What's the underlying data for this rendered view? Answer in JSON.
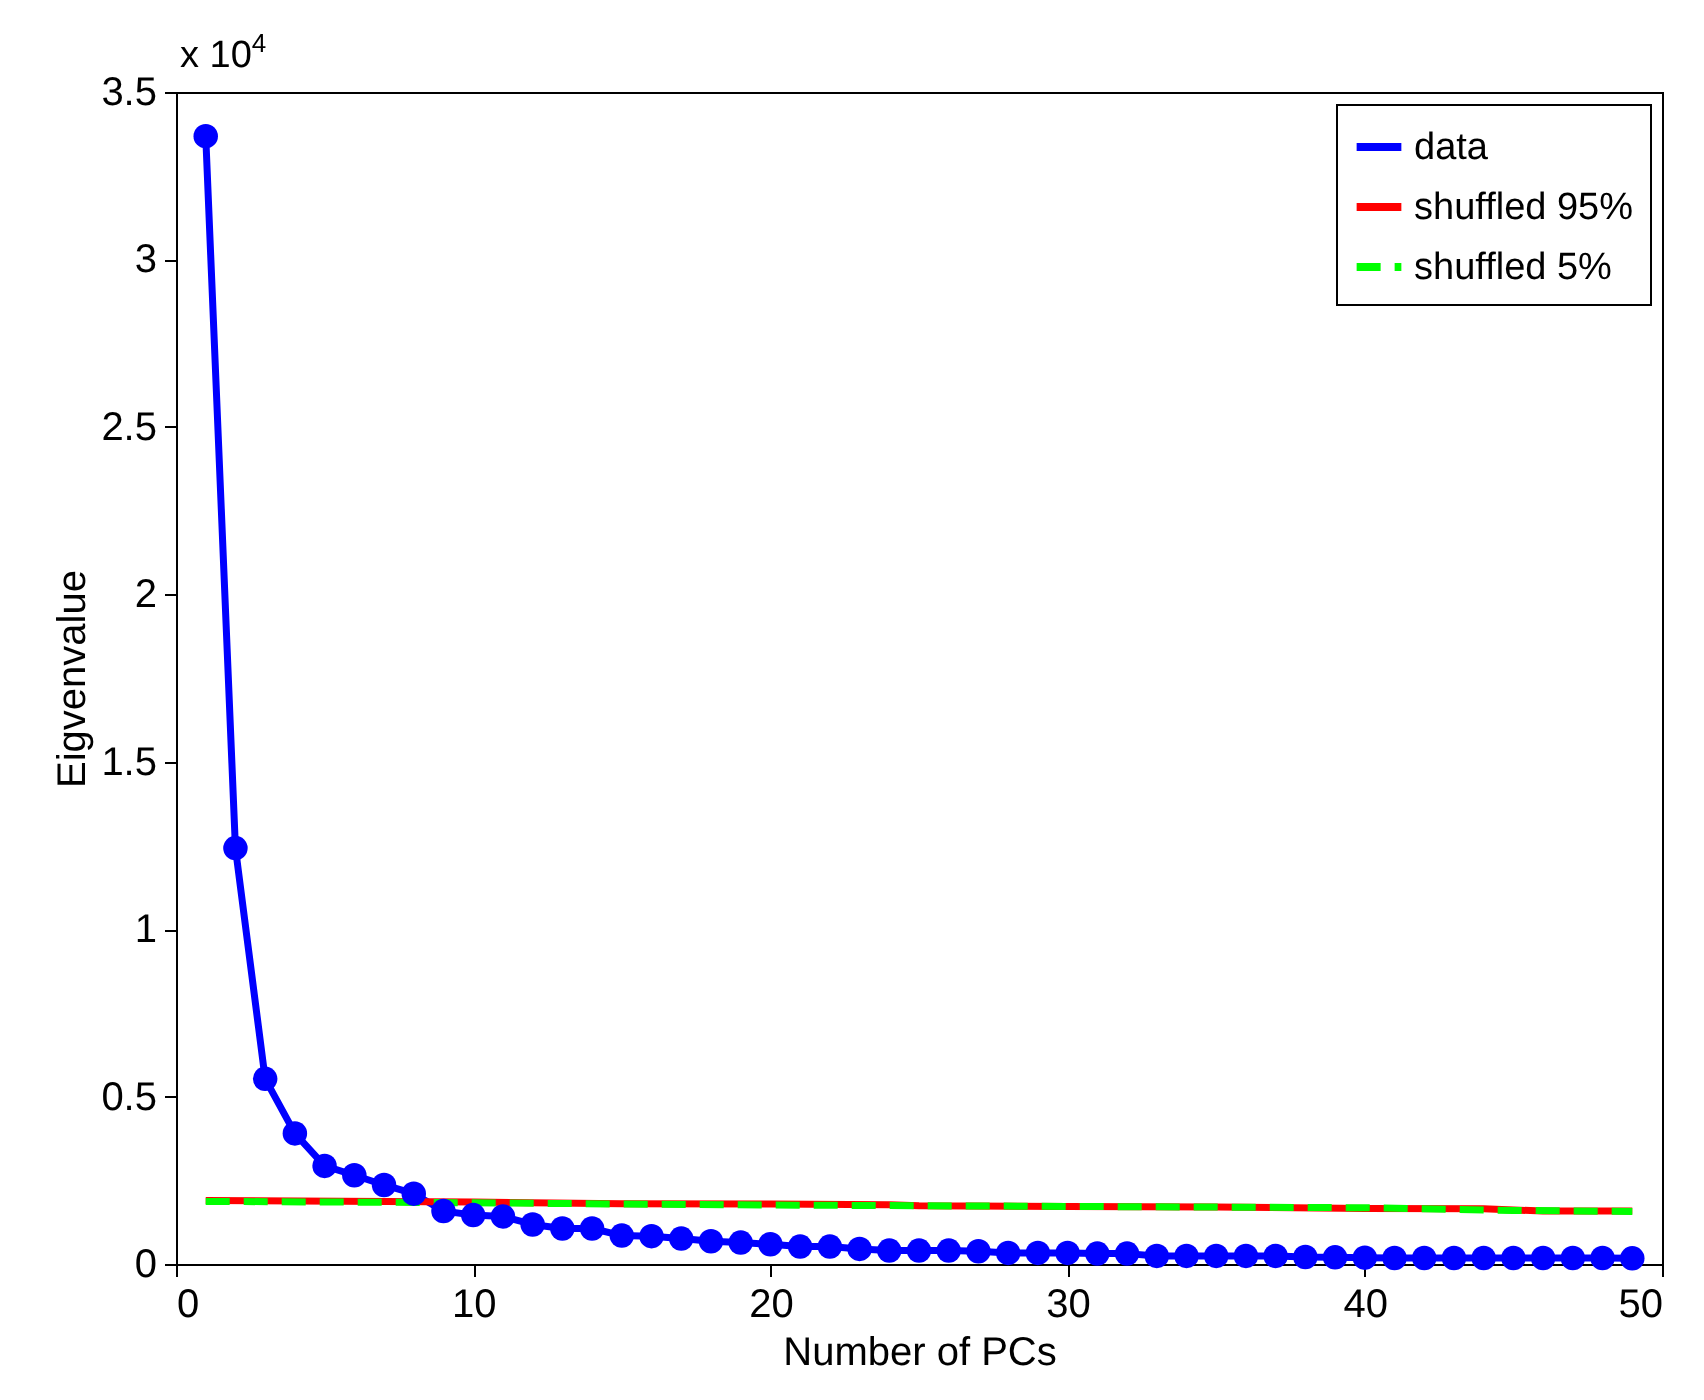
{
  "chart_data": {
    "type": "line",
    "xlabel": "Number of PCs",
    "ylabel": "Eigvenvalue",
    "annotations": [
      "x 10$^{4}$"
    ],
    "x": [
      1,
      2,
      3,
      4,
      5,
      6,
      7,
      8,
      9,
      10,
      11,
      12,
      13,
      14,
      15,
      16,
      17,
      18,
      19,
      20,
      21,
      22,
      23,
      24,
      25,
      26,
      27,
      28,
      29,
      30,
      31,
      32,
      33,
      34,
      35,
      36,
      37,
      38,
      39,
      40,
      41,
      42,
      43,
      44,
      45,
      46,
      47,
      48,
      49
    ],
    "series": [
      {
        "name": "data",
        "color": "#0000ff",
        "marker": "circle",
        "line_style": "solid",
        "values": [
          3.368,
          1.242,
          0.553,
          0.39,
          0.293,
          0.265,
          0.236,
          0.21,
          0.158,
          0.146,
          0.142,
          0.118,
          0.106,
          0.106,
          0.085,
          0.083,
          0.076,
          0.068,
          0.064,
          0.059,
          0.052,
          0.052,
          0.045,
          0.04,
          0.04,
          0.04,
          0.038,
          0.033,
          0.033,
          0.033,
          0.031,
          0.031,
          0.024,
          0.024,
          0.024,
          0.024,
          0.024,
          0.021,
          0.02,
          0.019,
          0.018,
          0.018,
          0.018,
          0.018,
          0.018,
          0.018,
          0.018,
          0.018,
          0.017
        ]
      },
      {
        "name": "shuffled 95%",
        "color": "#ff0000",
        "marker": "none",
        "line_style": "solid",
        "x": [
          1,
          10,
          15,
          20,
          24,
          25,
          30,
          35,
          40,
          44,
          46,
          49
        ],
        "values": [
          0.19,
          0.185,
          0.18,
          0.179,
          0.177,
          0.174,
          0.172,
          0.17,
          0.166,
          0.165,
          0.158,
          0.158
        ]
      },
      {
        "name": "shuffled 5%",
        "color": "#00ff00",
        "marker": "none",
        "line_style": "dashed",
        "x": [
          1,
          10,
          15,
          20,
          25,
          30,
          35,
          40,
          45,
          49
        ],
        "values": [
          0.187,
          0.183,
          0.179,
          0.176,
          0.174,
          0.172,
          0.17,
          0.168,
          0.16,
          0.157
        ]
      }
    ],
    "xlim": [
      0,
      50
    ],
    "xticks": [
      0,
      10,
      20,
      30,
      40,
      50
    ],
    "ylim": [
      0,
      3.5
    ],
    "yticks": [
      0,
      0.5,
      1,
      1.5,
      2,
      2.5,
      3,
      3.5
    ],
    "grid": false,
    "legend": "top right"
  }
}
